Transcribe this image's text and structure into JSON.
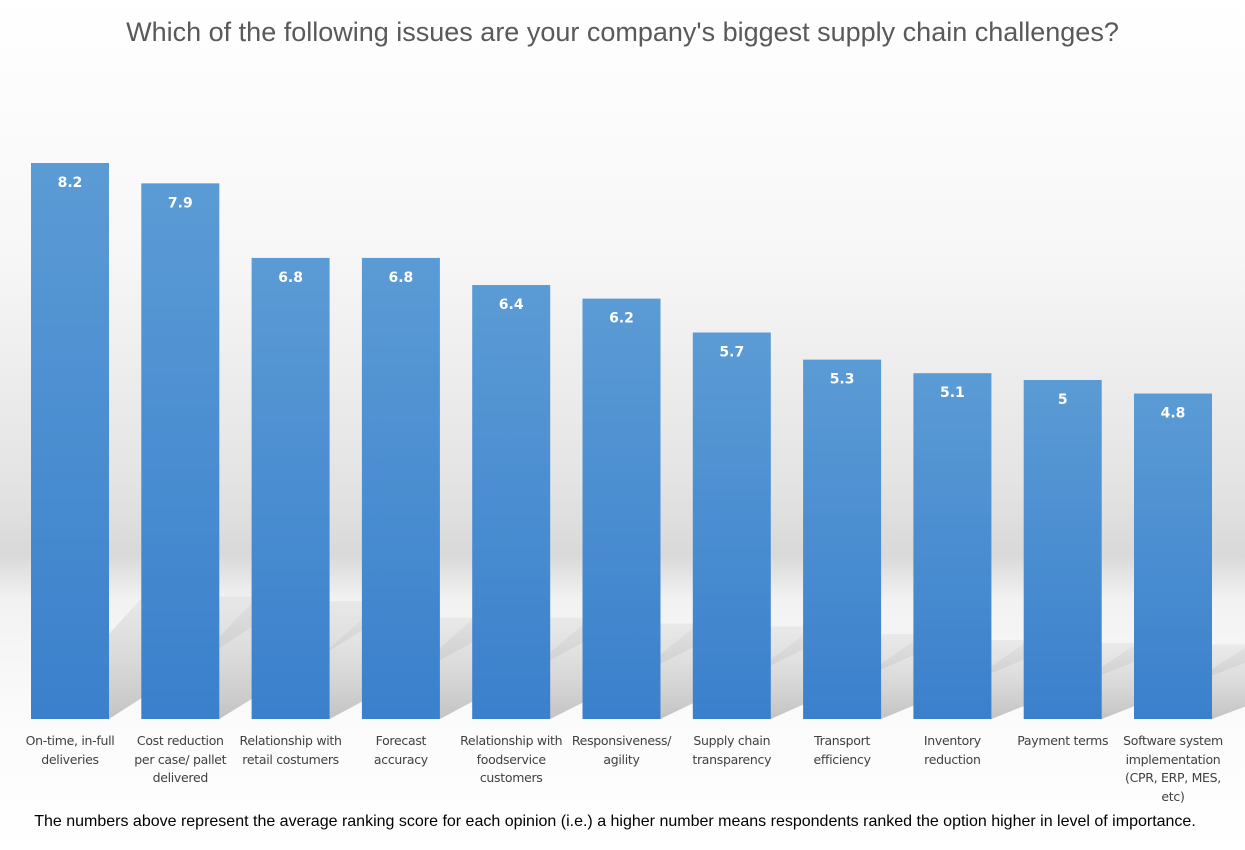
{
  "chart_data": {
    "type": "bar",
    "title": "Which of the following issues are your company's biggest supply chain challenges?",
    "categories": [
      "On-time, in-full\ndeliveries",
      "Cost reduction\nper case/ pallet\ndelivered",
      "Relationship with\nretail costumers",
      "Forecast\naccuracy",
      "Relationship with\nfoodservice\ncustomers",
      "Responsiveness/\nagility",
      "Supply chain\ntransparency",
      "Transport\nefficiency",
      "Inventory\nreduction",
      "Payment terms",
      "Software system\nimplementation\n(CPR, ERP, MES,\netc)"
    ],
    "values": [
      8.2,
      7.9,
      6.8,
      6.8,
      6.4,
      6.2,
      5.7,
      5.3,
      5.1,
      5,
      4.8
    ],
    "data_labels": [
      "8.2",
      "7.9",
      "6.8",
      "6.8",
      "6.4",
      "6.2",
      "5.7",
      "5.3",
      "5.1",
      "5",
      "4.8"
    ],
    "xlabel": "",
    "ylabel": "",
    "ylim": [
      0,
      8.2
    ],
    "grid": false,
    "legend": "none",
    "bar_color": "#5b9bd5",
    "bar_color_bottom": "#3a80cc",
    "footnote": "The numbers above represent the average ranking score for each opinion (i.e.) a higher number means respondents ranked the option higher in level of importance."
  }
}
